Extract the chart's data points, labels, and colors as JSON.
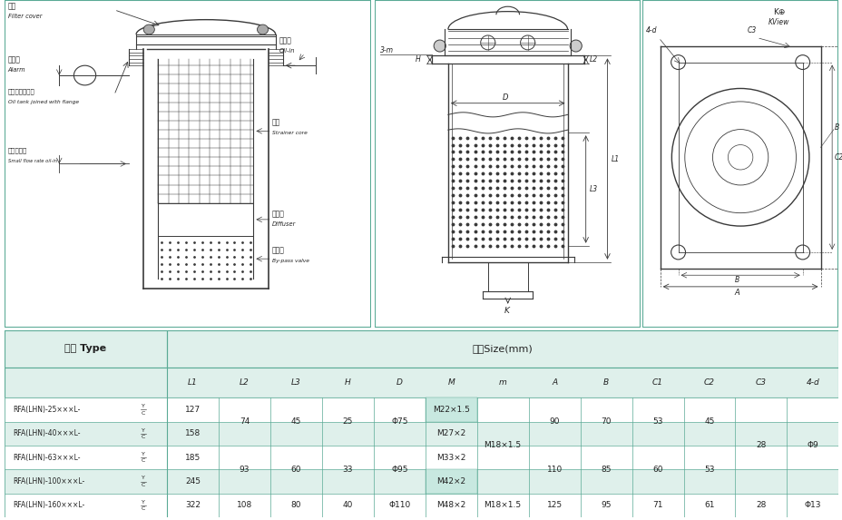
{
  "bg_color": "#ffffff",
  "border_color": "#5aaa95",
  "table_header_bg": "#dff0eb",
  "table_row_bg1": "#ffffff",
  "table_row_bg2": "#dff0eb",
  "columns": [
    "L1",
    "L2",
    "L3",
    "H",
    "D",
    "M",
    "m",
    "A",
    "B",
    "C1",
    "C2",
    "C3",
    "4-d"
  ],
  "rows": [
    {
      "type": "RFA(LHN)-25×××L-",
      "L1": "127",
      "L2": "74",
      "L3": "45",
      "H": "25",
      "D": "Φ75",
      "M": "M22×1.5",
      "m": "M18×1.5",
      "A": "90",
      "B": "70",
      "C1": "53",
      "C2": "45",
      "C3": "28",
      "4d": "Φ9"
    },
    {
      "type": "RFA(LHN)-40×××L-",
      "L1": "158",
      "L2": "74",
      "L3": "45",
      "H": "25",
      "D": "Φ75",
      "M": "M27×2",
      "m": "M18×1.5",
      "A": "90",
      "B": "70",
      "C1": "53",
      "C2": "45",
      "C3": "28",
      "4d": "Φ9"
    },
    {
      "type": "RFA(LHN)-63×××L-",
      "L1": "185",
      "L2": "93",
      "L3": "60",
      "H": "33",
      "D": "Φ95",
      "M": "M33×2",
      "m": "M18×1.5",
      "A": "110",
      "B": "85",
      "C1": "60",
      "C2": "53",
      "C3": "28",
      "4d": "Φ9"
    },
    {
      "type": "RFA(LHN)-100×××L-",
      "L1": "245",
      "L2": "93",
      "L3": "60",
      "H": "33",
      "D": "Φ95",
      "M": "M42×2",
      "m": "M18×1.5",
      "A": "110",
      "B": "85",
      "C1": "60",
      "C2": "53",
      "C3": "28",
      "4d": "Φ9"
    },
    {
      "type": "RFA(LHN)-160×××L-",
      "L1": "322",
      "L2": "108",
      "L3": "80",
      "H": "40",
      "D": "Φ110",
      "M": "M48×2",
      "m": "M18×1.5",
      "A": "125",
      "B": "95",
      "C1": "71",
      "C2": "61",
      "C3": "28",
      "4d": "Φ13"
    }
  ],
  "drawing_color": "#3a3a3a",
  "label_color": "#222222",
  "dim_color": "#3a3a3a"
}
